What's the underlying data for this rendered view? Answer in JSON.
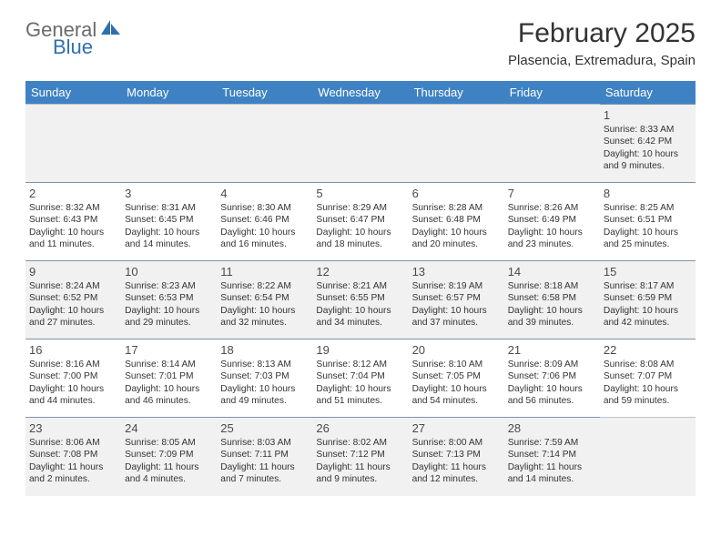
{
  "logo": {
    "word1": "General",
    "word2": "Blue"
  },
  "title": "February 2025",
  "location": "Plasencia, Extremadura, Spain",
  "day_headers": [
    "Sunday",
    "Monday",
    "Tuesday",
    "Wednesday",
    "Thursday",
    "Friday",
    "Saturday"
  ],
  "colors": {
    "header_bg": "#3f82c3",
    "header_text": "#ffffff",
    "border": "#7a94ad",
    "alt_row_bg": "#f1f1f1",
    "logo_gray": "#6b6b6b",
    "logo_blue": "#2f6fb0"
  },
  "typography": {
    "title_fontsize": 30,
    "location_fontsize": 15,
    "header_fontsize": 13,
    "daynum_fontsize": 13,
    "info_fontsize": 10.2
  },
  "weeks": [
    {
      "alt": true,
      "days": [
        null,
        null,
        null,
        null,
        null,
        null,
        {
          "num": "1",
          "sunrise": "Sunrise: 8:33 AM",
          "sunset": "Sunset: 6:42 PM",
          "daylight1": "Daylight: 10 hours",
          "daylight2": "and 9 minutes."
        }
      ]
    },
    {
      "alt": false,
      "days": [
        {
          "num": "2",
          "sunrise": "Sunrise: 8:32 AM",
          "sunset": "Sunset: 6:43 PM",
          "daylight1": "Daylight: 10 hours",
          "daylight2": "and 11 minutes."
        },
        {
          "num": "3",
          "sunrise": "Sunrise: 8:31 AM",
          "sunset": "Sunset: 6:45 PM",
          "daylight1": "Daylight: 10 hours",
          "daylight2": "and 14 minutes."
        },
        {
          "num": "4",
          "sunrise": "Sunrise: 8:30 AM",
          "sunset": "Sunset: 6:46 PM",
          "daylight1": "Daylight: 10 hours",
          "daylight2": "and 16 minutes."
        },
        {
          "num": "5",
          "sunrise": "Sunrise: 8:29 AM",
          "sunset": "Sunset: 6:47 PM",
          "daylight1": "Daylight: 10 hours",
          "daylight2": "and 18 minutes."
        },
        {
          "num": "6",
          "sunrise": "Sunrise: 8:28 AM",
          "sunset": "Sunset: 6:48 PM",
          "daylight1": "Daylight: 10 hours",
          "daylight2": "and 20 minutes."
        },
        {
          "num": "7",
          "sunrise": "Sunrise: 8:26 AM",
          "sunset": "Sunset: 6:49 PM",
          "daylight1": "Daylight: 10 hours",
          "daylight2": "and 23 minutes."
        },
        {
          "num": "8",
          "sunrise": "Sunrise: 8:25 AM",
          "sunset": "Sunset: 6:51 PM",
          "daylight1": "Daylight: 10 hours",
          "daylight2": "and 25 minutes."
        }
      ]
    },
    {
      "alt": true,
      "days": [
        {
          "num": "9",
          "sunrise": "Sunrise: 8:24 AM",
          "sunset": "Sunset: 6:52 PM",
          "daylight1": "Daylight: 10 hours",
          "daylight2": "and 27 minutes."
        },
        {
          "num": "10",
          "sunrise": "Sunrise: 8:23 AM",
          "sunset": "Sunset: 6:53 PM",
          "daylight1": "Daylight: 10 hours",
          "daylight2": "and 29 minutes."
        },
        {
          "num": "11",
          "sunrise": "Sunrise: 8:22 AM",
          "sunset": "Sunset: 6:54 PM",
          "daylight1": "Daylight: 10 hours",
          "daylight2": "and 32 minutes."
        },
        {
          "num": "12",
          "sunrise": "Sunrise: 8:21 AM",
          "sunset": "Sunset: 6:55 PM",
          "daylight1": "Daylight: 10 hours",
          "daylight2": "and 34 minutes."
        },
        {
          "num": "13",
          "sunrise": "Sunrise: 8:19 AM",
          "sunset": "Sunset: 6:57 PM",
          "daylight1": "Daylight: 10 hours",
          "daylight2": "and 37 minutes."
        },
        {
          "num": "14",
          "sunrise": "Sunrise: 8:18 AM",
          "sunset": "Sunset: 6:58 PM",
          "daylight1": "Daylight: 10 hours",
          "daylight2": "and 39 minutes."
        },
        {
          "num": "15",
          "sunrise": "Sunrise: 8:17 AM",
          "sunset": "Sunset: 6:59 PM",
          "daylight1": "Daylight: 10 hours",
          "daylight2": "and 42 minutes."
        }
      ]
    },
    {
      "alt": false,
      "days": [
        {
          "num": "16",
          "sunrise": "Sunrise: 8:16 AM",
          "sunset": "Sunset: 7:00 PM",
          "daylight1": "Daylight: 10 hours",
          "daylight2": "and 44 minutes."
        },
        {
          "num": "17",
          "sunrise": "Sunrise: 8:14 AM",
          "sunset": "Sunset: 7:01 PM",
          "daylight1": "Daylight: 10 hours",
          "daylight2": "and 46 minutes."
        },
        {
          "num": "18",
          "sunrise": "Sunrise: 8:13 AM",
          "sunset": "Sunset: 7:03 PM",
          "daylight1": "Daylight: 10 hours",
          "daylight2": "and 49 minutes."
        },
        {
          "num": "19",
          "sunrise": "Sunrise: 8:12 AM",
          "sunset": "Sunset: 7:04 PM",
          "daylight1": "Daylight: 10 hours",
          "daylight2": "and 51 minutes."
        },
        {
          "num": "20",
          "sunrise": "Sunrise: 8:10 AM",
          "sunset": "Sunset: 7:05 PM",
          "daylight1": "Daylight: 10 hours",
          "daylight2": "and 54 minutes."
        },
        {
          "num": "21",
          "sunrise": "Sunrise: 8:09 AM",
          "sunset": "Sunset: 7:06 PM",
          "daylight1": "Daylight: 10 hours",
          "daylight2": "and 56 minutes."
        },
        {
          "num": "22",
          "sunrise": "Sunrise: 8:08 AM",
          "sunset": "Sunset: 7:07 PM",
          "daylight1": "Daylight: 10 hours",
          "daylight2": "and 59 minutes."
        }
      ]
    },
    {
      "alt": true,
      "days": [
        {
          "num": "23",
          "sunrise": "Sunrise: 8:06 AM",
          "sunset": "Sunset: 7:08 PM",
          "daylight1": "Daylight: 11 hours",
          "daylight2": "and 2 minutes."
        },
        {
          "num": "24",
          "sunrise": "Sunrise: 8:05 AM",
          "sunset": "Sunset: 7:09 PM",
          "daylight1": "Daylight: 11 hours",
          "daylight2": "and 4 minutes."
        },
        {
          "num": "25",
          "sunrise": "Sunrise: 8:03 AM",
          "sunset": "Sunset: 7:11 PM",
          "daylight1": "Daylight: 11 hours",
          "daylight2": "and 7 minutes."
        },
        {
          "num": "26",
          "sunrise": "Sunrise: 8:02 AM",
          "sunset": "Sunset: 7:12 PM",
          "daylight1": "Daylight: 11 hours",
          "daylight2": "and 9 minutes."
        },
        {
          "num": "27",
          "sunrise": "Sunrise: 8:00 AM",
          "sunset": "Sunset: 7:13 PM",
          "daylight1": "Daylight: 11 hours",
          "daylight2": "and 12 minutes."
        },
        {
          "num": "28",
          "sunrise": "Sunrise: 7:59 AM",
          "sunset": "Sunset: 7:14 PM",
          "daylight1": "Daylight: 11 hours",
          "daylight2": "and 14 minutes."
        },
        null
      ]
    }
  ]
}
